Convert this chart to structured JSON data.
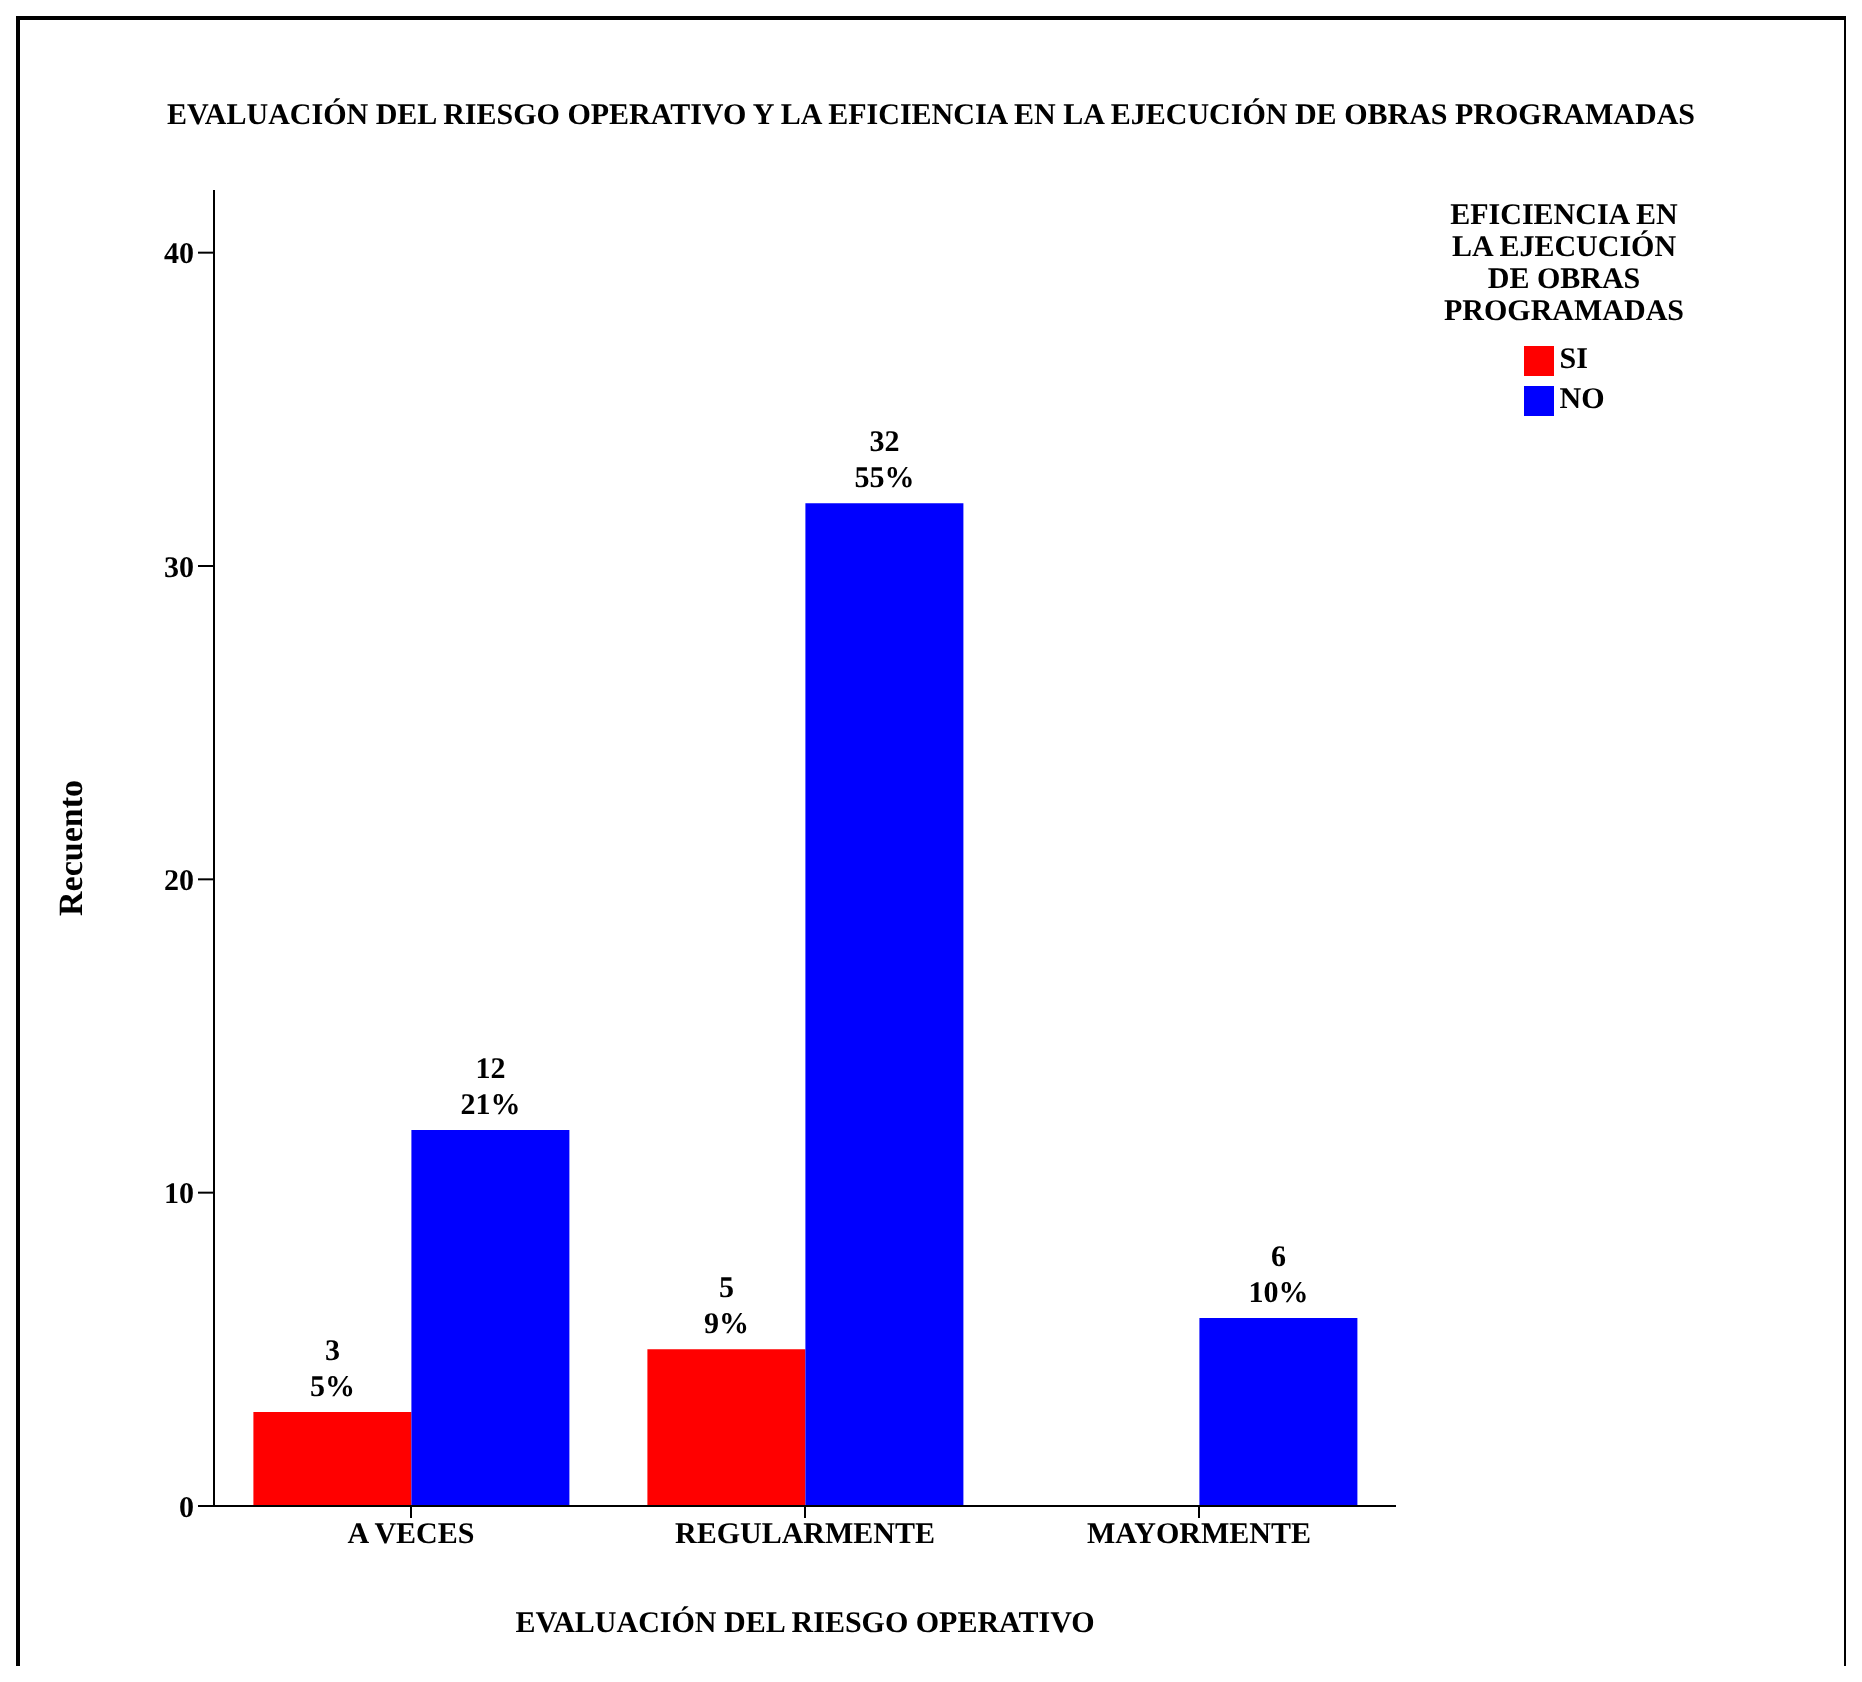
{
  "chart_data": {
    "type": "bar",
    "title": "EVALUACIÓN DEL RIESGO OPERATIVO Y LA EFICIENCIA EN LA EJECUCIÓN DE OBRAS PROGRAMADAS",
    "xlabel": "EVALUACIÓN DEL RIESGO OPERATIVO",
    "ylabel": "Recuento",
    "legend_title": "EFICIENCIA EN\nLA EJECUCIÓN\nDE OBRAS\nPROGRAMADAS",
    "legend": "top right",
    "grid": false,
    "categories": [
      "A VECES",
      "REGULARMENTE",
      "MAYORMENTE"
    ],
    "series": [
      {
        "name": "SI",
        "color": "#ff0000",
        "values": [
          3,
          5,
          null
        ],
        "value_labels": [
          "3\n5%",
          "5\n9%",
          null
        ]
      },
      {
        "name": "NO",
        "color": "#0000ff",
        "values": [
          12,
          32,
          6
        ],
        "value_labels": [
          "12\n21%",
          "32\n55%",
          "6\n10%"
        ]
      }
    ],
    "ylim": [
      0,
      42
    ],
    "yticks": [
      0,
      10,
      20,
      30,
      40
    ]
  }
}
